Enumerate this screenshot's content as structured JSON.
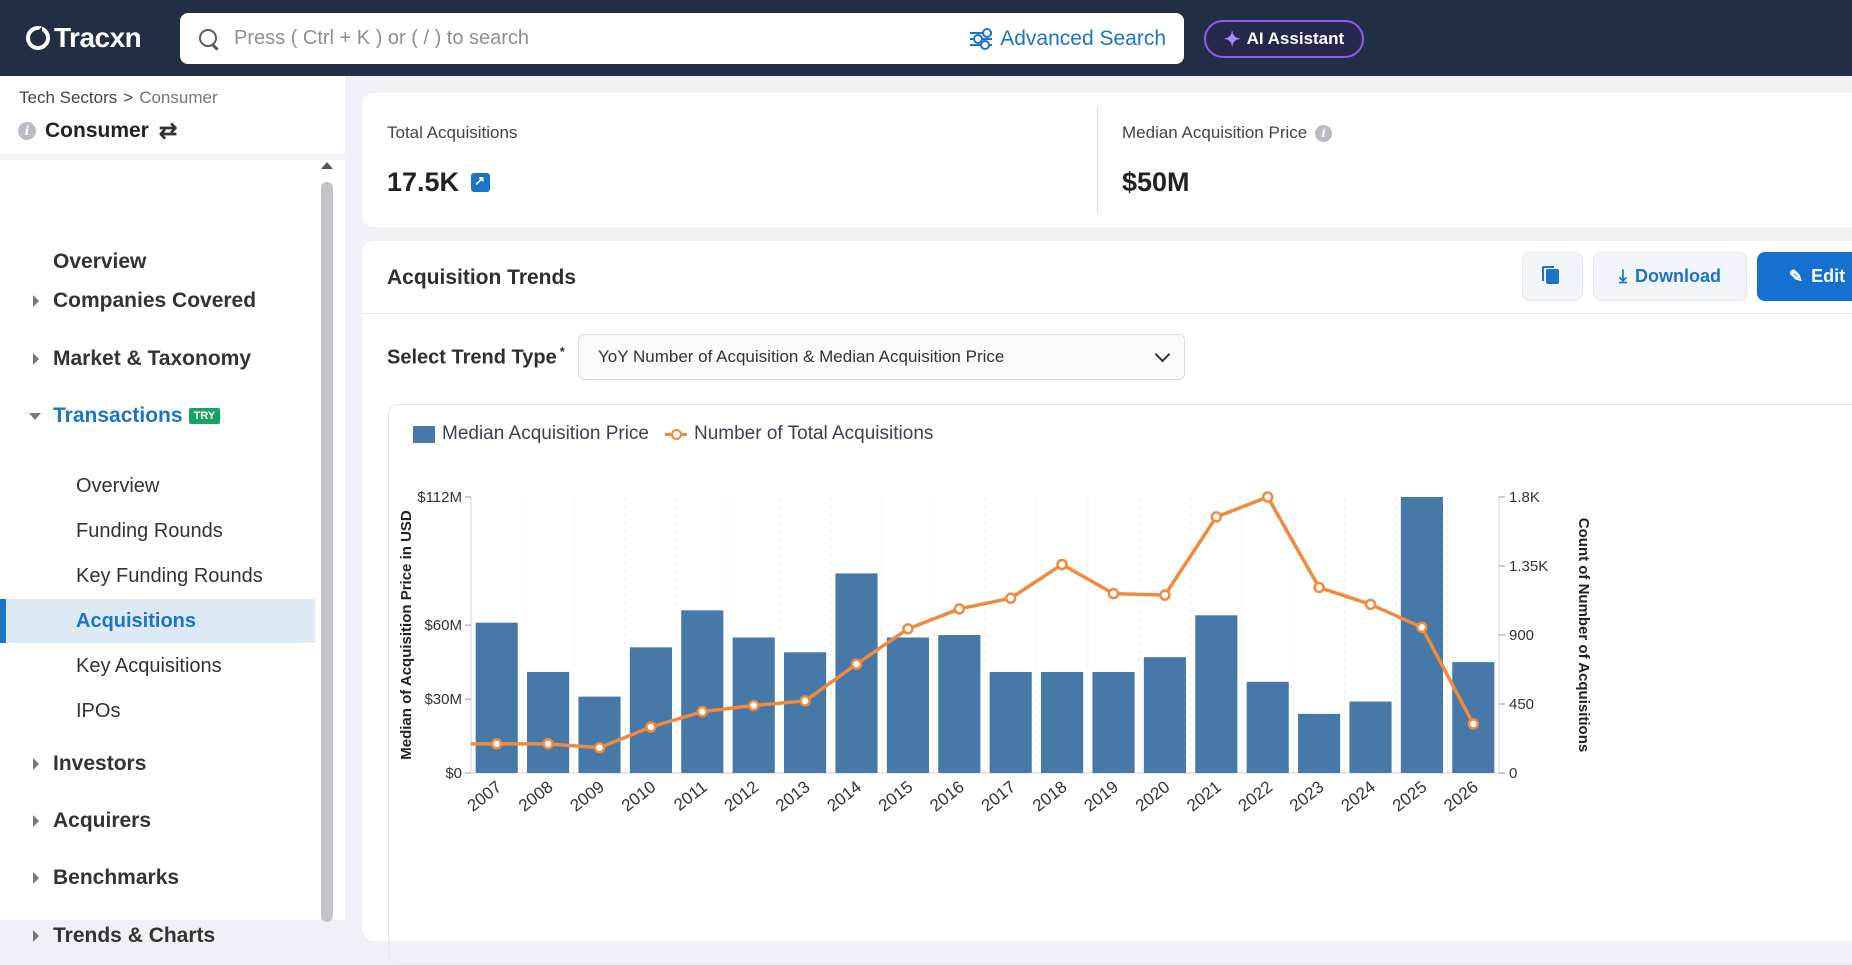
{
  "brand": "Tracxn",
  "search": {
    "placeholder": "Press ( Ctrl + K ) or ( / ) to search",
    "advanced_label": "Advanced Search"
  },
  "ai_assistant_label": "AI Assistant",
  "breadcrumb": {
    "parent": "Tech Sectors",
    "separator": ">",
    "current": "Consumer"
  },
  "sector_title": "Consumer",
  "nav": {
    "overview": "Overview",
    "companies": "Companies Covered",
    "market": "Market & Taxonomy",
    "transactions": "Transactions",
    "try_badge": "TRY",
    "sub": [
      "Overview",
      "Funding Rounds",
      "Key Funding Rounds",
      "Acquisitions",
      "Key Acquisitions",
      "IPOs"
    ],
    "investors": "Investors",
    "acquirers": "Acquirers",
    "benchmarks": "Benchmarks",
    "trends": "Trends & Charts"
  },
  "stats": {
    "total_label": "Total Acquisitions",
    "total_value": "17.5K",
    "median_label": "Median Acquisition Price",
    "median_value": "$50M"
  },
  "trend": {
    "title": "Acquisition Trends",
    "download_label": "Download",
    "edit_label": "Edit",
    "select_label": "Select Trend Type",
    "required_mark": "*",
    "select_value": "YoY Number of Acquisition & Median Acquisition Price"
  },
  "colors": {
    "bar": "#4679a8",
    "line": "#f08a3c",
    "accent": "#1a75c9",
    "topbar": "#222e44"
  },
  "chart_data": {
    "type": "bar",
    "categories": [
      "2007",
      "2008",
      "2009",
      "2010",
      "2011",
      "2012",
      "2013",
      "2014",
      "2015",
      "2016",
      "2017",
      "2018",
      "2019",
      "2020",
      "2021",
      "2022",
      "2023",
      "2024",
      "2025",
      "2026"
    ],
    "series": [
      {
        "name": "Median Acquisition Price",
        "type": "bar",
        "axis": "left",
        "values": [
          61,
          41,
          31,
          51,
          66,
          55,
          49,
          81,
          55,
          56,
          41,
          41,
          41,
          47,
          64,
          37,
          24,
          29,
          112,
          45
        ]
      },
      {
        "name": "Number of Total Acquisitions",
        "type": "line",
        "axis": "right",
        "values": [
          190,
          190,
          165,
          300,
          400,
          440,
          470,
          710,
          940,
          1070,
          1140,
          1360,
          1170,
          1160,
          1670,
          1800,
          1210,
          1100,
          950,
          320
        ]
      }
    ],
    "left_axis": {
      "label": "Median of Acquisition Price in USD",
      "ticks": [
        "$0",
        "$30M",
        "$60M",
        "$112M"
      ],
      "tick_values": [
        0,
        30,
        60,
        112
      ],
      "range": [
        0,
        112
      ]
    },
    "right_axis": {
      "label": "Count of Number of Acquisitions",
      "ticks": [
        "0",
        "450",
        "900",
        "1.35K",
        "1.8K"
      ],
      "tick_values": [
        0,
        450,
        900,
        1350,
        1800
      ],
      "range": [
        0,
        1800
      ]
    },
    "legend_position": "top-left",
    "grid": true
  }
}
